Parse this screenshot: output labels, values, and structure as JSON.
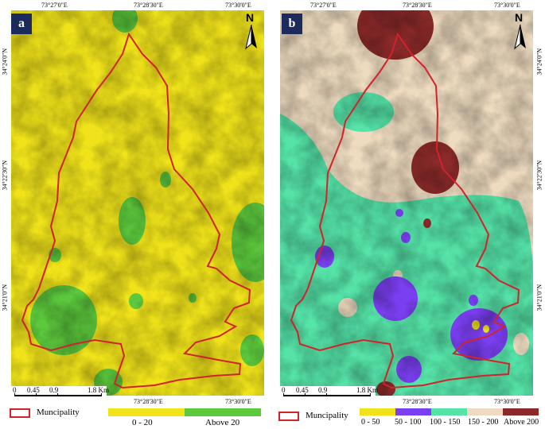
{
  "panel_a": {
    "label": "a",
    "top_coords": [
      "73°27'0\"E",
      "73°28'30\"E",
      "73°30'0\"E"
    ],
    "bottom_coords": [
      "73°28'30\"E",
      "73°30'0\"E"
    ],
    "left_coords": [
      "34°24'0\"N",
      "34°22'30\"N",
      "34°21'0\"N"
    ],
    "north": "N",
    "scale": [
      "0",
      "0.45",
      "0.9",
      "1.8 Km"
    ],
    "colors": {
      "low": "#f0e31a",
      "high": "#5cc83c",
      "boundary": "#d2232a"
    }
  },
  "panel_b": {
    "label": "b",
    "top_coords": [
      "73°27'0\"E",
      "73°28'30\"E",
      "73°30'0\"E"
    ],
    "bottom_coords": [
      "73°28'30\"E",
      "73°30'0\"E"
    ],
    "right_coords": [
      "34°24'0\"N",
      "34°22'30\"N",
      "34°21'0\"N"
    ],
    "north": "N",
    "scale": [
      "0",
      "0.45",
      "0.9",
      "1.8 Km"
    ],
    "colors": {
      "c1": "#f0e31a",
      "c2": "#7b3ff2",
      "c3": "#55e3a8",
      "c4": "#efdcc0",
      "c5": "#8c2a2a",
      "boundary": "#d2232a"
    }
  },
  "legend_a": {
    "municipality": "Muncipality",
    "items": [
      {
        "label": "0 - 20",
        "color": "#f0e31a"
      },
      {
        "label": "Above 20",
        "color": "#5cc83c"
      }
    ]
  },
  "legend_b": {
    "municipality": "Muncipality",
    "items": [
      {
        "label": "0 - 50",
        "color": "#f0e31a"
      },
      {
        "label": "50 - 100",
        "color": "#7b3ff2"
      },
      {
        "label": "100 - 150",
        "color": "#55e3a8"
      },
      {
        "label": "150 - 200",
        "color": "#efdcc0"
      },
      {
        "label": "Above 200",
        "color": "#8c2a2a"
      }
    ]
  }
}
